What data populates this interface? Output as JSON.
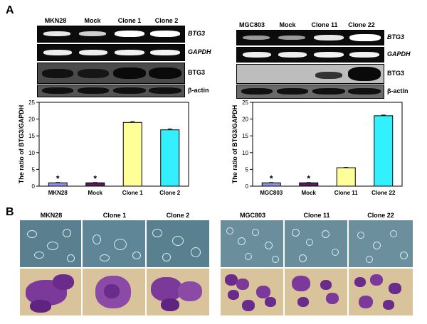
{
  "panel_a": {
    "letter": "A"
  },
  "panel_b": {
    "letter": "B"
  },
  "left_gels": {
    "lanes": [
      "MKN28",
      "Mock",
      "Clone 1",
      "Clone 2"
    ],
    "rows": [
      "BTG3",
      "GAPDH",
      "BTG3",
      "β-actin"
    ]
  },
  "right_gels": {
    "lanes": [
      "MGC803",
      "Mock",
      "Clone 11",
      "Clone 22"
    ],
    "rows": [
      "BTG3",
      "GAPDH",
      "BTG3",
      "β-actin"
    ]
  },
  "chart_data": [
    {
      "type": "bar",
      "categories": [
        "MKN28",
        "Mock",
        "Clone 1",
        "Clone 2"
      ],
      "values": [
        1.0,
        1.0,
        19.0,
        16.8
      ],
      "errors": [
        0.1,
        0.1,
        0.25,
        0.25
      ],
      "annotations": [
        "*",
        "*",
        "",
        ""
      ],
      "colors": [
        "#8f8fe8",
        "#5a1a5e",
        "#ffff99",
        "#33f0ff"
      ],
      "ylabel": "The ratio of BTG3/GAPDH",
      "ylim": [
        0,
        25
      ],
      "yticks": [
        0,
        5,
        10,
        15,
        20,
        25
      ]
    },
    {
      "type": "bar",
      "categories": [
        "MGC803",
        "Mock",
        "Clone 11",
        "Clone 22"
      ],
      "values": [
        1.0,
        1.0,
        5.5,
        21.0
      ],
      "errors": [
        0.1,
        0.1,
        0.1,
        0.2
      ],
      "annotations": [
        "*",
        "*",
        "",
        ""
      ],
      "colors": [
        "#8f8fe8",
        "#5a1a5e",
        "#ffff99",
        "#33f0ff"
      ],
      "ylabel": "The ratio of BTG3/GAPDH",
      "ylim": [
        0,
        25
      ],
      "yticks": [
        0,
        5,
        10,
        15,
        20,
        25
      ]
    }
  ],
  "micrographs_left": [
    "MKN28",
    "Clone 1",
    "Clone 2"
  ],
  "micrographs_right": [
    "MGC803",
    "Clone 11",
    "Clone 22"
  ]
}
